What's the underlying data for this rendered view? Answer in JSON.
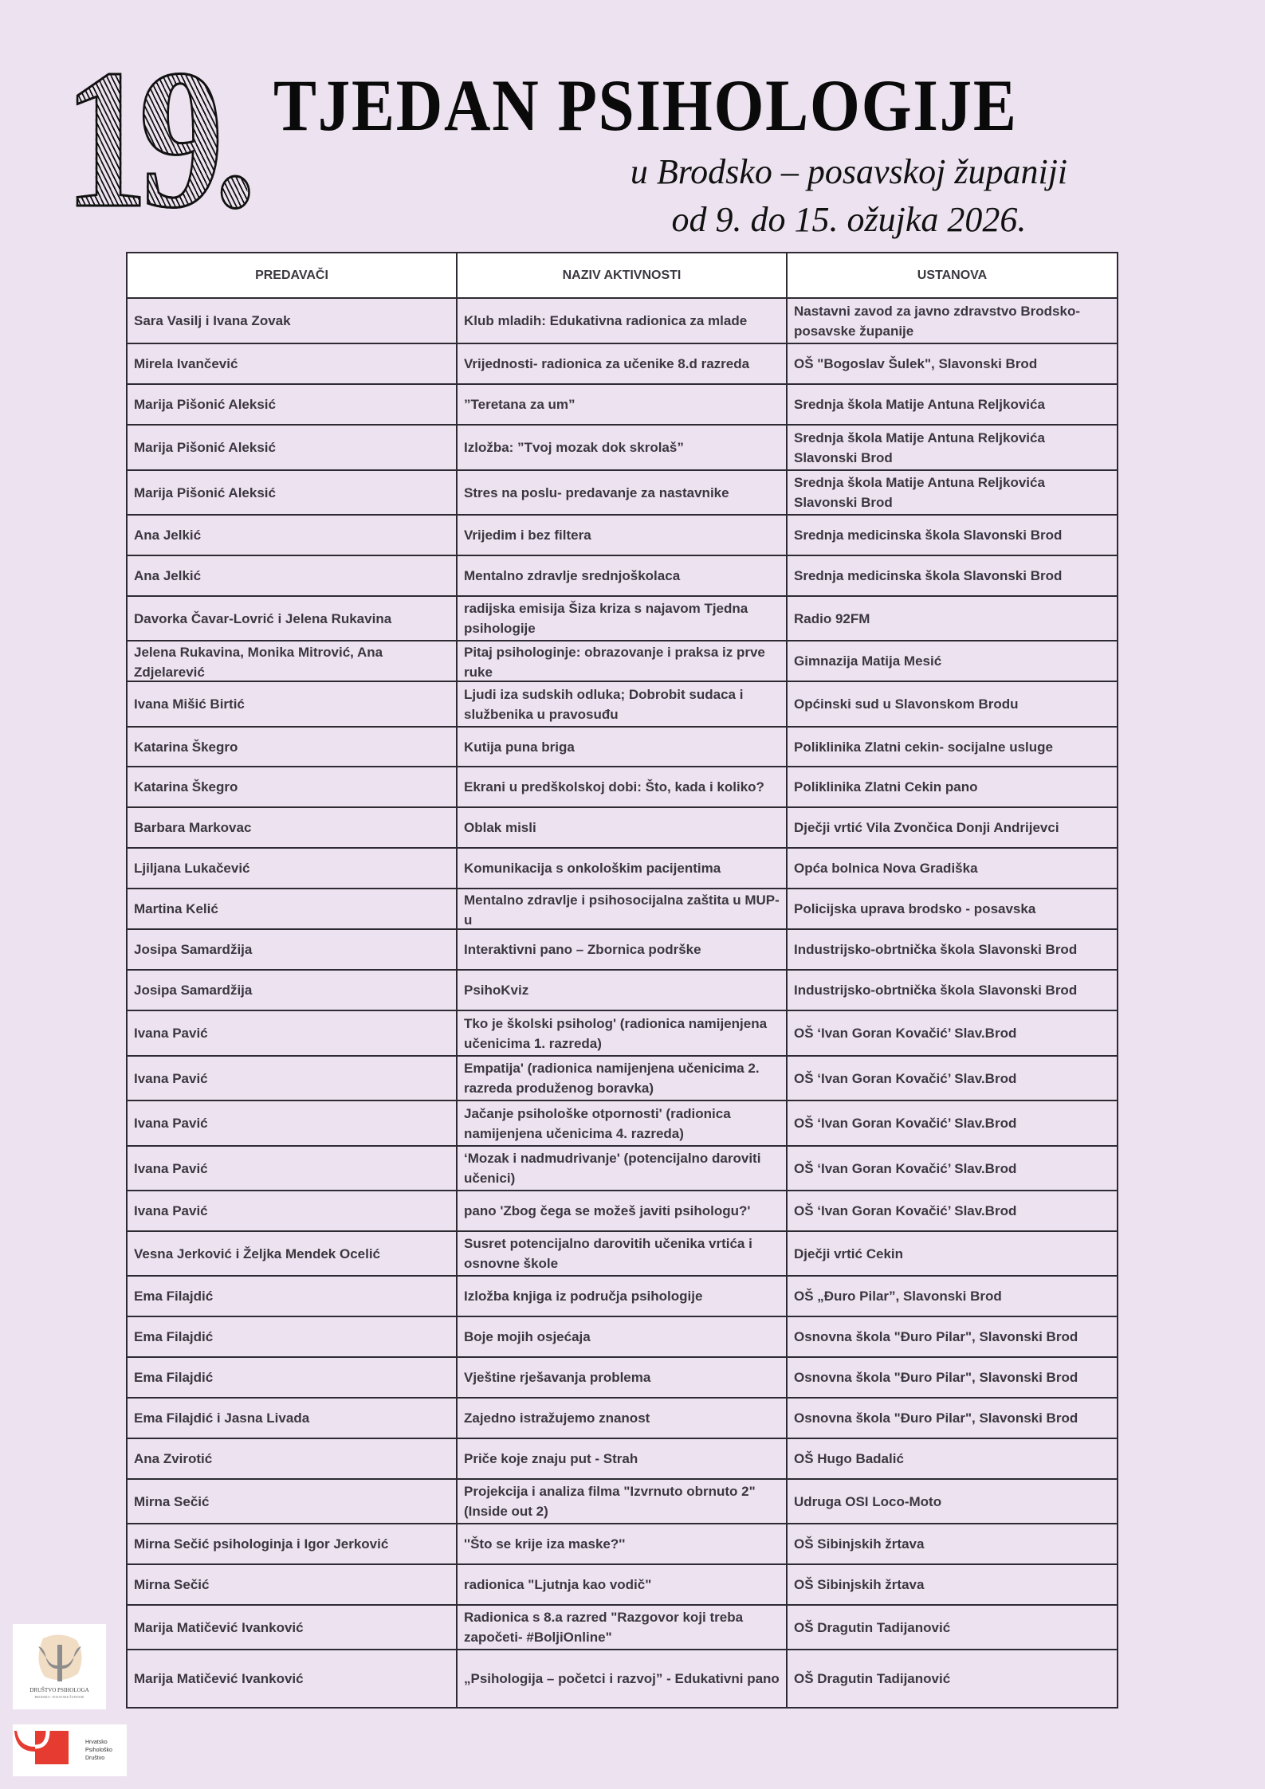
{
  "header": {
    "number": "19.",
    "title": "TJEDAN PSIHOLOGIJE",
    "subtitle_line1": "u Brodsko – posavskoj županiji",
    "subtitle_line2": "od 9. do 15. ožujka 2026."
  },
  "table": {
    "columns": [
      "PREDAVAČI",
      "NAZIV AKTIVNOSTI",
      "USTANOVA"
    ],
    "rows": [
      [
        "Sara Vasilj i Ivana Zovak",
        "Klub mladih: Edukativna radionica za mlade",
        "Nastavni zavod za javno zdravstvo Brodsko-posavske županije"
      ],
      [
        "Mirela Ivančević",
        "Vrijednosti- radionica za učenike 8.d razreda",
        "OŠ \"Bogoslav Šulek\", Slavonski Brod"
      ],
      [
        "Marija Pišonić Aleksić",
        "”Teretana za um”",
        "Srednja škola Matije Antuna Reljkovića"
      ],
      [
        "Marija Pišonić Aleksić",
        "Izložba: ”Tvoj mozak dok skrolaš”",
        "Srednja škola Matije Antuna Reljkovića Slavonski Brod"
      ],
      [
        "Marija Pišonić Aleksić",
        "Stres na poslu- predavanje za nastavnike",
        "Srednja škola Matije Antuna Reljkovića Slavonski Brod"
      ],
      [
        "Ana Jelkić",
        "Vrijedim i bez filtera",
        "Srednja medicinska škola Slavonski Brod"
      ],
      [
        "Ana Jelkić",
        "Mentalno zdravlje srednjoškolaca",
        "Srednja medicinska škola Slavonski Brod"
      ],
      [
        "Davorka Čavar-Lovrić i Jelena Rukavina",
        "radijska emisija Šiza kriza s najavom Tjedna psihologije",
        "Radio 92FM"
      ],
      [
        "Jelena Rukavina, Monika Mitrović, Ana Zdjelarević",
        "Pitaj psihologinje: obrazovanje i praksa iz prve ruke",
        "Gimnazija Matija Mesić"
      ],
      [
        "Ivana Mišić Birtić",
        "Ljudi iza sudskih odluka; Dobrobit sudaca i službenika u pravosuđu",
        "Općinski sud u Slavonskom Brodu"
      ],
      [
        "Katarina Škegro",
        "Kutija puna briga",
        "Poliklinika Zlatni cekin- socijalne usluge"
      ],
      [
        "Katarina Škegro",
        "Ekrani u predškolskoj dobi: Što, kada i koliko?",
        "Poliklinika Zlatni Cekin pano"
      ],
      [
        "Barbara Markovac",
        "Oblak misli",
        "Dječji vrtić Vila Zvončica Donji Andrijevci"
      ],
      [
        "Ljiljana Lukačević",
        "Komunikacija s onkološkim pacijentima",
        "Opća bolnica Nova Gradiška"
      ],
      [
        "Martina Kelić",
        "Mentalno zdravlje i psihosocijalna zaštita u MUP-u",
        "Policijska uprava brodsko - posavska"
      ],
      [
        "Josipa Samardžija",
        "Interaktivni pano – Zbornica podrške",
        "Industrijsko-obrtnička škola Slavonski Brod"
      ],
      [
        "Josipa Samardžija",
        "PsihoKviz",
        "Industrijsko-obrtnička škola Slavonski Brod"
      ],
      [
        "Ivana Pavić",
        "Tko je školski psiholog' (radionica namijenjena učenicima 1. razreda)",
        "OŠ ‘Ivan Goran Kovačić’ Slav.Brod"
      ],
      [
        "Ivana Pavić",
        "Empatija' (radionica namijenjena učenicima 2. razreda produženog boravka)",
        "OŠ ‘Ivan Goran Kovačić’ Slav.Brod"
      ],
      [
        "Ivana Pavić",
        "Jačanje psihološke otpornosti' (radionica namijenjena učenicima 4. razreda)",
        "OŠ ‘Ivan Goran Kovačić’ Slav.Brod"
      ],
      [
        "Ivana Pavić",
        "‘Mozak i nadmudrivanje' (potencijalno daroviti učenici)",
        "OŠ ‘Ivan Goran Kovačić’ Slav.Brod"
      ],
      [
        "Ivana Pavić",
        "pano 'Zbog čega se možeš javiti psihologu?'",
        "OŠ ‘Ivan Goran Kovačić’ Slav.Brod"
      ],
      [
        "Vesna Jerković i Željka Mendek Ocelić",
        "Susret potencijalno darovitih učenika vrtića i osnovne škole",
        "Dječji vrtić Cekin"
      ],
      [
        "Ema Filajdić",
        "Izložba knjiga iz područja psihologije",
        "OŠ „Đuro Pilar”, Slavonski Brod"
      ],
      [
        "Ema Filajdić",
        "Boje mojih osjećaja",
        "Osnovna škola \"Đuro Pilar\", Slavonski Brod"
      ],
      [
        "Ema Filajdić",
        "Vještine rješavanja problema",
        "Osnovna škola \"Đuro Pilar\", Slavonski Brod"
      ],
      [
        "Ema Filajdić i Jasna Livada",
        "Zajedno istražujemo znanost",
        "Osnovna škola \"Đuro Pilar\", Slavonski Brod"
      ],
      [
        "Ana Zvirotić",
        "Priče koje znaju put - Strah",
        "OŠ Hugo Badalić"
      ],
      [
        "Mirna Sečić",
        "Projekcija i analiza filma \"Izvrnuto obrnuto 2\" (Inside out 2)",
        "Udruga OSI Loco-Moto"
      ],
      [
        "Mirna Sečić psihologinja i Igor Jerković",
        "''Što se krije iza maske?''",
        "OŠ Sibinjskih žrtava"
      ],
      [
        "Mirna Sečić",
        "radionica \"Ljutnja kao vodič\"",
        "OŠ Sibinjskih žrtava"
      ],
      [
        "Marija Matičević Ivanković",
        "Radionica s 8.a razred \"Razgovor koji treba započeti- #BoljiOnline\"",
        "OŠ Dragutin Tadijanović"
      ],
      [
        "Marija Matičević Ivanković",
        "„Psihologija – početci i razvoj” - Edukativni pano",
        "OŠ Dragutin Tadijanović"
      ]
    ]
  },
  "logos": {
    "logo1_text": "DRUŠTVO PSIHOLOGA",
    "logo1_subtext": "BRODSKO - POSAVSKE ŽUPANIJE",
    "logo2_text": [
      "Hrvatsko",
      "Psihološko",
      "Društvo"
    ],
    "brand_red": "#e63b30",
    "logo1_beige": "#f1dcc4",
    "logo1_gray": "#8c8c8c"
  },
  "colors": {
    "background": "#ede3f0",
    "text": "#3b3740",
    "border": "#2e2a33"
  }
}
